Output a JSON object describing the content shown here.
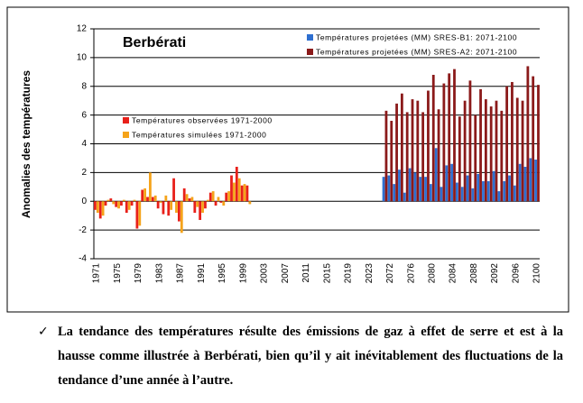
{
  "chart_data": {
    "type": "bar",
    "title": "Berbérati",
    "y_label": "Anomalies des températures",
    "categories": [
      "1971",
      null,
      null,
      null,
      "1975",
      null,
      null,
      null,
      "1979",
      null,
      null,
      null,
      "1983",
      null,
      null,
      null,
      "1987",
      null,
      null,
      null,
      "1991",
      null,
      null,
      null,
      "1995",
      null,
      null,
      null,
      "1999",
      null,
      null,
      null,
      "2003",
      null,
      null,
      null,
      "2007",
      null,
      null,
      null,
      "2011",
      null,
      null,
      null,
      "2015",
      null,
      null,
      null,
      "2019",
      null,
      null,
      null,
      "2023",
      null,
      null,
      null,
      "2072",
      null,
      null,
      null,
      "2076",
      null,
      null,
      null,
      "2080",
      null,
      null,
      null,
      "2084",
      null,
      null,
      null,
      "2088",
      null,
      null,
      null,
      "2092",
      null,
      null,
      null,
      "2096",
      null,
      null,
      null,
      "2100"
    ],
    "series": [
      {
        "name": "Températures projetées (MM) SRES-B1: 2071-2100",
        "color": "#2e6fd0",
        "values": [
          null,
          null,
          null,
          null,
          null,
          null,
          null,
          null,
          null,
          null,
          null,
          null,
          null,
          null,
          null,
          null,
          null,
          null,
          null,
          null,
          null,
          null,
          null,
          null,
          null,
          null,
          null,
          null,
          null,
          null,
          null,
          null,
          null,
          null,
          null,
          null,
          null,
          null,
          null,
          null,
          null,
          null,
          null,
          null,
          null,
          null,
          null,
          null,
          null,
          null,
          null,
          null,
          null,
          null,
          null,
          1.7,
          1.8,
          1.2,
          2.2,
          0.6,
          2.3,
          2.0,
          1.7,
          1.7,
          1.2,
          3.7,
          1.0,
          2.5,
          2.6,
          1.3,
          1.0,
          1.8,
          0.9,
          1.9,
          1.4,
          1.4,
          2.1,
          0.7,
          1.4,
          1.8,
          1.1,
          2.6,
          2.4,
          3.0,
          2.9
        ]
      },
      {
        "name": "Températures projetées (MM) SRES-A2: 2071-2100",
        "color": "#8b1a1a",
        "values": [
          null,
          null,
          null,
          null,
          null,
          null,
          null,
          null,
          null,
          null,
          null,
          null,
          null,
          null,
          null,
          null,
          null,
          null,
          null,
          null,
          null,
          null,
          null,
          null,
          null,
          null,
          null,
          null,
          null,
          null,
          null,
          null,
          null,
          null,
          null,
          null,
          null,
          null,
          null,
          null,
          null,
          null,
          null,
          null,
          null,
          null,
          null,
          null,
          null,
          null,
          null,
          null,
          null,
          null,
          null,
          6.3,
          5.6,
          6.8,
          7.5,
          6.2,
          7.1,
          7.0,
          6.2,
          7.7,
          8.8,
          6.4,
          8.2,
          8.9,
          9.2,
          5.9,
          7.0,
          8.4,
          6.0,
          7.8,
          7.1,
          6.6,
          7.0,
          6.3,
          8.0,
          8.3,
          7.2,
          7.0,
          9.4,
          8.7,
          8.1
        ]
      },
      {
        "name": "Températures observées 1971-2000",
        "color": "#e8201a",
        "values": [
          -0.6,
          -1.2,
          -0.3,
          0.2,
          -0.4,
          -0.3,
          -0.8,
          -0.3,
          -1.9,
          0.8,
          0.3,
          0.3,
          -0.5,
          -0.9,
          -1.0,
          1.6,
          -1.4,
          0.9,
          0.2,
          -0.8,
          -1.3,
          -0.5,
          0.6,
          -0.3,
          -0.1,
          0.6,
          1.8,
          2.4,
          1.1,
          1.1,
          null,
          null,
          null,
          null,
          null,
          null,
          null,
          null,
          null,
          null,
          null,
          null,
          null,
          null,
          null,
          null,
          null,
          null,
          null,
          null,
          null,
          null,
          null,
          null,
          null,
          null,
          null,
          null,
          null,
          null,
          null,
          null,
          null,
          null,
          null,
          null,
          null,
          null,
          null,
          null,
          null,
          null,
          null,
          null,
          null,
          null,
          null,
          null,
          null,
          null,
          null,
          null,
          null,
          null,
          null
        ]
      },
      {
        "name": "Températures simulées 1971-2000",
        "color": "#f5a31a",
        "values": [
          -0.8,
          -1.0,
          0.1,
          -0.2,
          -0.5,
          0.1,
          -0.6,
          0.1,
          -1.7,
          0.9,
          2.0,
          0.4,
          -0.1,
          0.4,
          -0.6,
          -0.8,
          -2.2,
          0.5,
          0.3,
          -0.4,
          -0.8,
          0.1,
          0.7,
          0.3,
          -0.3,
          0.7,
          1.3,
          1.6,
          1.2,
          -0.2,
          null,
          null,
          null,
          null,
          null,
          null,
          null,
          null,
          null,
          null,
          null,
          null,
          null,
          null,
          null,
          null,
          null,
          null,
          null,
          null,
          null,
          null,
          null,
          null,
          null,
          null,
          null,
          null,
          null,
          null,
          null,
          null,
          null,
          null,
          null,
          null,
          null,
          null,
          null,
          null,
          null,
          null,
          null,
          null,
          null,
          null,
          null,
          null,
          null,
          null,
          null,
          null,
          null,
          null,
          null
        ]
      }
    ],
    "ylim": [
      -4,
      12
    ],
    "yticks": [
      -4,
      -2,
      0,
      2,
      4,
      6,
      8,
      10,
      12
    ],
    "grid": true
  },
  "caption": "La tendance des températures résulte des émissions de gaz à effet de serre et est à la hausse comme illustrée à Berbérati, bien qu’il y ait inévitablement des fluctuations  de la tendance d’une année à l’autre."
}
